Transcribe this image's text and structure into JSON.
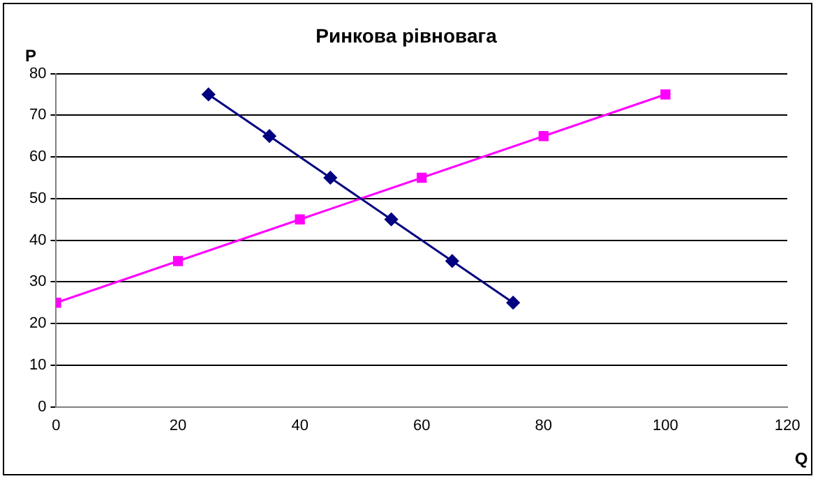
{
  "chart_data": {
    "type": "line",
    "title": "Ринкова рівновага",
    "xlabel": "Q",
    "ylabel": "P",
    "series": [
      {
        "type": "line",
        "color": "#000080",
        "marker": "diamond",
        "x": [
          25,
          35,
          45,
          55,
          65,
          75
        ],
        "values": [
          75,
          65,
          55,
          45,
          35,
          25
        ]
      },
      {
        "type": "line",
        "color": "#ff00ff",
        "marker": "square",
        "x": [
          0,
          20,
          40,
          60,
          80,
          100
        ],
        "values": [
          25,
          35,
          45,
          55,
          65,
          75
        ]
      }
    ],
    "xlim": [
      0,
      120
    ],
    "xticks": [
      0,
      20,
      40,
      60,
      80,
      100,
      120
    ],
    "ylim": [
      0,
      80
    ],
    "yticks": [
      0,
      10,
      20,
      30,
      40,
      50,
      60,
      70,
      80
    ],
    "grid": "y",
    "legend": false,
    "line_style": "solid"
  }
}
